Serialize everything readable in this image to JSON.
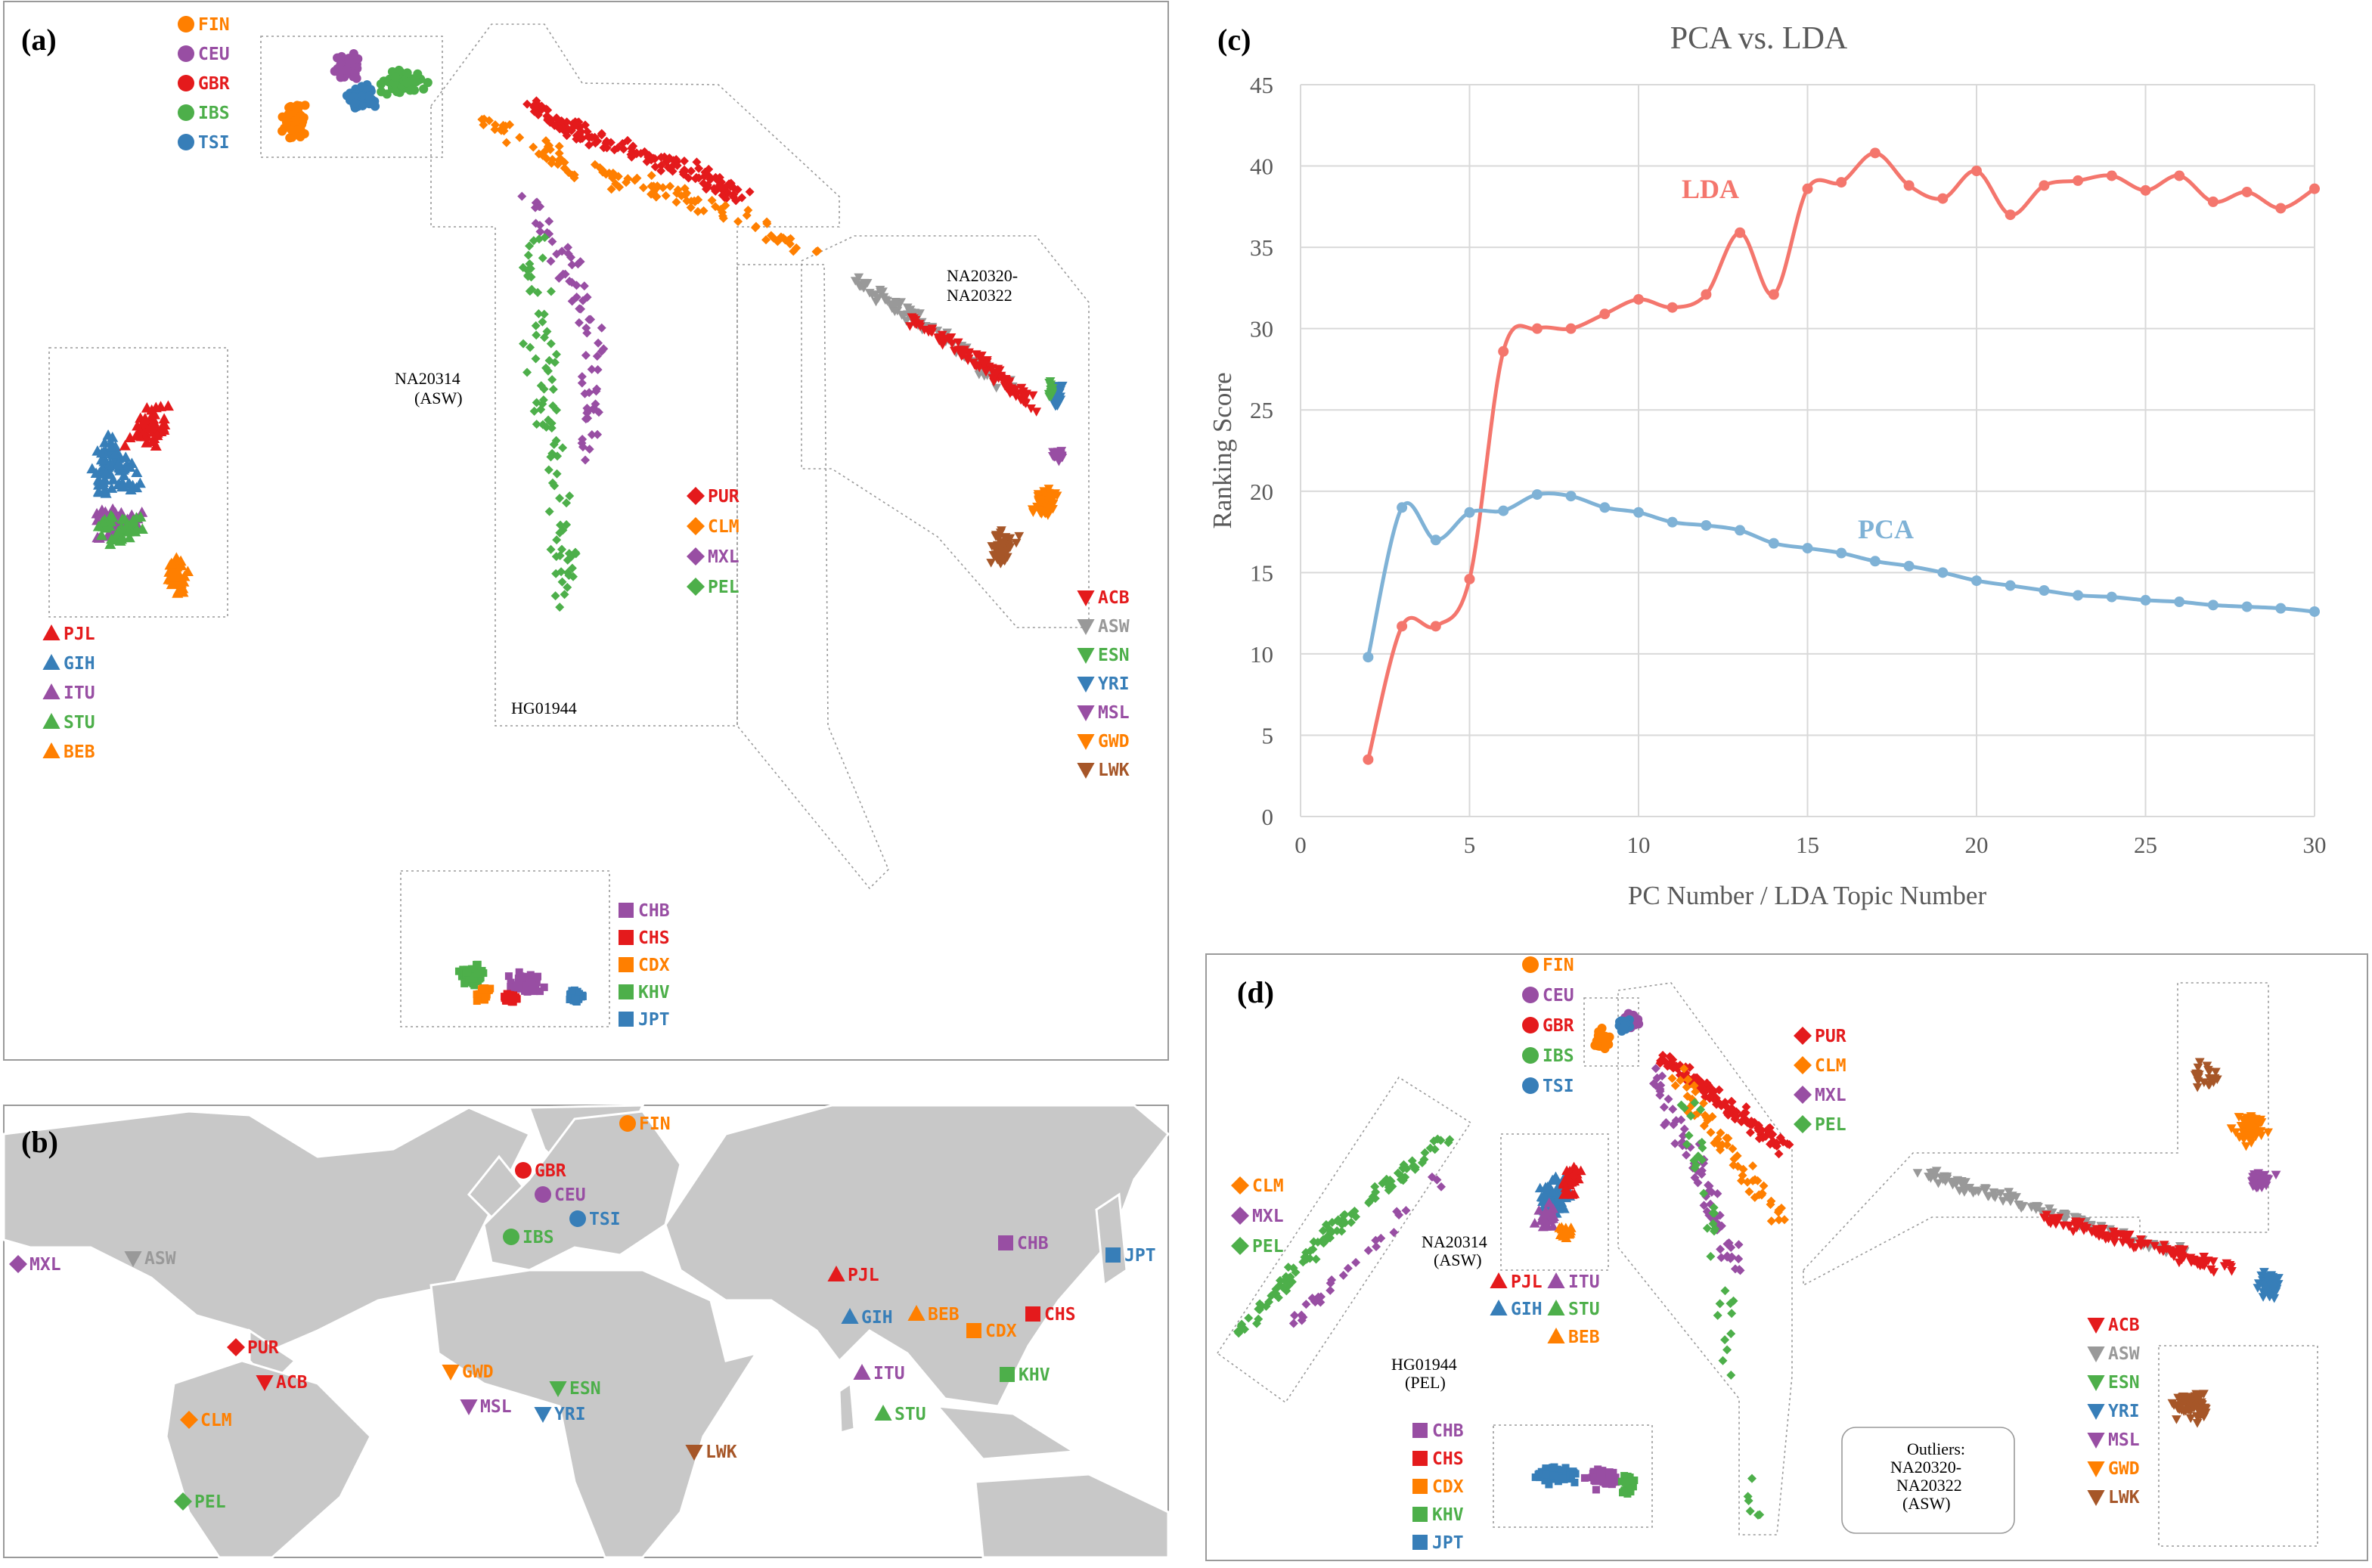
{
  "colors": {
    "red": "#e41a1c",
    "orange": "#ff7f00",
    "purple": "#984ea3",
    "green": "#4daf4a",
    "blue": "#377eb8",
    "gray": "#999999",
    "brown": "#a65628",
    "lda_line": "#f4766d",
    "pca_line": "#7fb2d6",
    "map_land": "#c8c8c8"
  },
  "panels": {
    "a": {
      "label": "(a)"
    },
    "b": {
      "label": "(b)"
    },
    "c": {
      "label": "(c)"
    },
    "d": {
      "label": "(d)"
    }
  },
  "legends": {
    "europe": [
      {
        "code": "FIN",
        "color": "orange",
        "shape": "circle"
      },
      {
        "code": "CEU",
        "color": "purple",
        "shape": "circle"
      },
      {
        "code": "GBR",
        "color": "red",
        "shape": "circle"
      },
      {
        "code": "IBS",
        "color": "green",
        "shape": "circle"
      },
      {
        "code": "TSI",
        "color": "blue",
        "shape": "circle"
      }
    ],
    "south_asia": [
      {
        "code": "PJL",
        "color": "red",
        "shape": "triangle"
      },
      {
        "code": "GIH",
        "color": "blue",
        "shape": "triangle"
      },
      {
        "code": "ITU",
        "color": "purple",
        "shape": "triangle"
      },
      {
        "code": "STU",
        "color": "green",
        "shape": "triangle"
      },
      {
        "code": "BEB",
        "color": "orange",
        "shape": "triangle"
      }
    ],
    "americas": [
      {
        "code": "PUR",
        "color": "red",
        "shape": "diamond"
      },
      {
        "code": "CLM",
        "color": "orange",
        "shape": "diamond"
      },
      {
        "code": "MXL",
        "color": "purple",
        "shape": "diamond"
      },
      {
        "code": "PEL",
        "color": "green",
        "shape": "diamond"
      }
    ],
    "africa": [
      {
        "code": "ACB",
        "color": "red",
        "shape": "tri-down"
      },
      {
        "code": "ASW",
        "color": "gray",
        "shape": "tri-down"
      },
      {
        "code": "ESN",
        "color": "green",
        "shape": "tri-down"
      },
      {
        "code": "YRI",
        "color": "blue",
        "shape": "tri-down"
      },
      {
        "code": "MSL",
        "color": "purple",
        "shape": "tri-down"
      },
      {
        "code": "GWD",
        "color": "orange",
        "shape": "tri-down"
      },
      {
        "code": "LWK",
        "color": "brown",
        "shape": "tri-down"
      }
    ],
    "east_asia": [
      {
        "code": "CHB",
        "color": "purple",
        "shape": "square"
      },
      {
        "code": "CHS",
        "color": "red",
        "shape": "square"
      },
      {
        "code": "CDX",
        "color": "orange",
        "shape": "square"
      },
      {
        "code": "KHV",
        "color": "green",
        "shape": "square"
      },
      {
        "code": "JPT",
        "color": "blue",
        "shape": "square"
      }
    ],
    "americas_d": [
      {
        "code": "CLM",
        "color": "orange",
        "shape": "diamond"
      },
      {
        "code": "MXL",
        "color": "purple",
        "shape": "diamond"
      },
      {
        "code": "PEL",
        "color": "green",
        "shape": "diamond"
      }
    ],
    "americas_d2": [
      {
        "code": "PUR",
        "color": "red",
        "shape": "diamond"
      },
      {
        "code": "CLM",
        "color": "orange",
        "shape": "diamond"
      },
      {
        "code": "MXL",
        "color": "purple",
        "shape": "diamond"
      },
      {
        "code": "PEL",
        "color": "green",
        "shape": "diamond"
      }
    ],
    "south_asia_d": [
      {
        "code": "PJL",
        "color": "red",
        "shape": "triangle"
      },
      {
        "code": "ITU",
        "color": "purple",
        "shape": "triangle"
      },
      {
        "code": "GIH",
        "color": "blue",
        "shape": "triangle"
      },
      {
        "code": "STU",
        "color": "green",
        "shape": "triangle"
      },
      {
        "code": "BEB",
        "color": "orange",
        "shape": "triangle"
      }
    ]
  },
  "annotations": {
    "a_na20314_1": "NA20314",
    "a_na20314_2": "(ASW)",
    "a_na20320_1": "NA20320-",
    "a_na20320_2": "NA20322",
    "a_hg01944": "HG01944",
    "d_na20314_1": "NA20314",
    "d_na20314_2": "(ASW)",
    "d_hg01944_1": "HG01944",
    "d_hg01944_2": "(PEL)",
    "d_outliers_1": "Outliers:",
    "d_outliers_2": "NA20320-",
    "d_outliers_3": "NA20322",
    "d_outliers_4": "(ASW)"
  },
  "map_labels": [
    {
      "code": "FIN",
      "color": "orange",
      "shape": "circle"
    },
    {
      "code": "GBR",
      "color": "red",
      "shape": "circle"
    },
    {
      "code": "CEU",
      "color": "purple",
      "shape": "circle"
    },
    {
      "code": "TSI",
      "color": "blue",
      "shape": "circle"
    },
    {
      "code": "IBS",
      "color": "green",
      "shape": "circle"
    },
    {
      "code": "MXL",
      "color": "purple",
      "shape": "diamond"
    },
    {
      "code": "ASW",
      "color": "gray",
      "shape": "tri-down"
    },
    {
      "code": "PUR",
      "color": "red",
      "shape": "diamond"
    },
    {
      "code": "ACB",
      "color": "red",
      "shape": "tri-down"
    },
    {
      "code": "CLM",
      "color": "orange",
      "shape": "diamond"
    },
    {
      "code": "PEL",
      "color": "green",
      "shape": "diamond"
    },
    {
      "code": "GWD",
      "color": "orange",
      "shape": "tri-down"
    },
    {
      "code": "MSL",
      "color": "purple",
      "shape": "tri-down"
    },
    {
      "code": "ESN",
      "color": "green",
      "shape": "tri-down"
    },
    {
      "code": "YRI",
      "color": "blue",
      "shape": "tri-down"
    },
    {
      "code": "LWK",
      "color": "brown",
      "shape": "tri-down"
    },
    {
      "code": "PJL",
      "color": "red",
      "shape": "triangle"
    },
    {
      "code": "GIH",
      "color": "blue",
      "shape": "triangle"
    },
    {
      "code": "BEB",
      "color": "orange",
      "shape": "triangle"
    },
    {
      "code": "ITU",
      "color": "purple",
      "shape": "triangle"
    },
    {
      "code": "STU",
      "color": "green",
      "shape": "triangle"
    },
    {
      "code": "CHB",
      "color": "purple",
      "shape": "square"
    },
    {
      "code": "CDX",
      "color": "orange",
      "shape": "square"
    },
    {
      "code": "CHS",
      "color": "red",
      "shape": "square"
    },
    {
      "code": "KHV",
      "color": "green",
      "shape": "square"
    },
    {
      "code": "JPT",
      "color": "blue",
      "shape": "square"
    }
  ],
  "chart_data": {
    "type": "line",
    "title": "PCA vs. LDA",
    "xlabel": "PC Number / LDA Topic Number",
    "ylabel": "Ranking Score",
    "xlim": [
      0,
      30
    ],
    "ylim": [
      0,
      45
    ],
    "xticks": [
      0,
      5,
      10,
      15,
      20,
      25,
      30
    ],
    "yticks": [
      0,
      5,
      10,
      15,
      20,
      25,
      30,
      35,
      40,
      45
    ],
    "grid": true,
    "x": [
      2,
      3,
      4,
      5,
      6,
      7,
      8,
      9,
      10,
      11,
      12,
      13,
      14,
      15,
      16,
      17,
      18,
      19,
      20,
      21,
      22,
      23,
      24,
      25,
      26,
      27,
      28,
      29,
      30
    ],
    "series": [
      {
        "name": "LDA",
        "color": "lda_line",
        "values": [
          3.5,
          11.7,
          11.7,
          14.6,
          28.6,
          30.0,
          30.0,
          30.9,
          31.8,
          31.3,
          32.1,
          35.9,
          32.1,
          38.6,
          39.0,
          40.8,
          38.8,
          38.0,
          39.7,
          37.0,
          38.8,
          39.1,
          39.4,
          38.5,
          39.4,
          37.8,
          38.4,
          37.4,
          38.6
        ]
      },
      {
        "name": "PCA",
        "color": "pca_line",
        "values": [
          9.8,
          19.0,
          17.0,
          18.7,
          18.8,
          19.8,
          19.7,
          19.0,
          18.7,
          18.1,
          17.9,
          17.6,
          16.8,
          16.5,
          16.2,
          15.7,
          15.4,
          15.0,
          14.5,
          14.2,
          13.9,
          13.6,
          13.5,
          13.3,
          13.2,
          13.0,
          12.9,
          12.8,
          12.6
        ]
      }
    ]
  }
}
